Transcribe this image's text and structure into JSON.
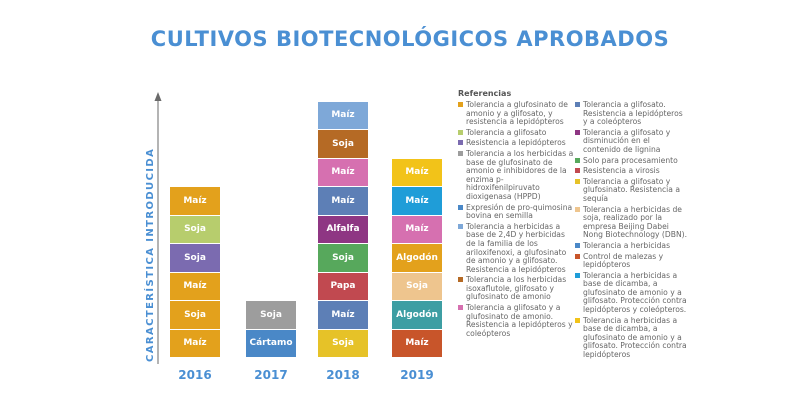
{
  "title": "CULTIVOS BIOTECNOLÓGICOS APROBADOS",
  "chart_data": {
    "type": "bar",
    "ylabel": "CARACTERÍSTICA INTRODUCIDA",
    "categories": [
      "2016",
      "2017",
      "2018",
      "2019"
    ],
    "stacks": [
      {
        "year": "2016",
        "blocks": [
          {
            "label": "Maíz",
            "color": "#e3a11c"
          },
          {
            "label": "Soja",
            "color": "#e3a11c"
          },
          {
            "label": "Maíz",
            "color": "#e3a11c"
          },
          {
            "label": "Soja",
            "color": "#7b6bb0"
          },
          {
            "label": "Soja",
            "color": "#b7cd6d"
          },
          {
            "label": "Maíz",
            "color": "#e3a11c"
          }
        ]
      },
      {
        "year": "2017",
        "blocks": [
          {
            "label": "Cártamo",
            "color": "#4a88c7"
          },
          {
            "label": "Soja",
            "color": "#9d9d9d"
          }
        ]
      },
      {
        "year": "2018",
        "blocks": [
          {
            "label": "Soja",
            "color": "#e6c228"
          },
          {
            "label": "Maíz",
            "color": "#5d7fb6"
          },
          {
            "label": "Papa",
            "color": "#c14950"
          },
          {
            "label": "Soja",
            "color": "#57a85c"
          },
          {
            "label": "Alfalfa",
            "color": "#8e3683"
          },
          {
            "label": "Maíz",
            "color": "#5d7fb6"
          },
          {
            "label": "Maíz",
            "color": "#d670b0"
          },
          {
            "label": "Soja",
            "color": "#b56a25"
          },
          {
            "label": "Maíz",
            "color": "#7ea8d8"
          }
        ]
      },
      {
        "year": "2019",
        "blocks": [
          {
            "label": "Maíz",
            "color": "#c8552a"
          },
          {
            "label": "Algodón",
            "color": "#3d9ea3"
          },
          {
            "label": "Soja",
            "color": "#eec58e"
          },
          {
            "label": "Algodón",
            "color": "#e3a11c"
          },
          {
            "label": "Maíz",
            "color": "#d670b0"
          },
          {
            "label": "Maíz",
            "color": "#1f9dd8"
          },
          {
            "label": "Maíz",
            "color": "#f2c319"
          }
        ]
      }
    ]
  },
  "legend": {
    "title": "Referencias",
    "col1": [
      {
        "text": "Tolerancia a glufosinato de amonio y a glifosato, y resistencia a lepidópteros",
        "color": "#e3a11c"
      },
      {
        "text": "Tolerancia a glifosato",
        "color": "#b7cd6d"
      },
      {
        "text": "Resistencia a lepidópteros",
        "color": "#7b6bb0"
      },
      {
        "text": "Tolerancia a los herbicidas a base de glufosinato de amonio e inhibidores de la enzima p-hidroxifenilpiruvato dioxigenasa (HPPD)",
        "color": "#9d9d9d"
      },
      {
        "text": "Expresión de pro-quimosina bovina en semilla",
        "color": "#4a88c7"
      },
      {
        "text": "Tolerancia a herbicidas a base de 2,4D y herbicidas de la familia de los ariloxifenoxi, a glufosinato de amonio y a glifosato. Resistencia a lepidópteros",
        "color": "#7ea8d8"
      },
      {
        "text": "Tolerancia a los herbicidas isoxaflutole, glifosato y glufosinato de amonio",
        "color": "#b56a25"
      },
      {
        "text": "Tolerancia a glifosato y a glufosinato de amonio. Resistencia a lepidópteros y coleópteros",
        "color": "#d670b0"
      }
    ],
    "col2": [
      {
        "text": "Tolerancia a glifosato. Resistencia a lepidópteros y a coleópteros",
        "color": "#5d7fb6"
      },
      {
        "text": "Tolerancia a glifosato y disminución en el contenido de lignina",
        "color": "#8e3683"
      },
      {
        "text": "Solo para procesamiento",
        "color": "#57a85c"
      },
      {
        "text": "Resistencia a virosis",
        "color": "#c14950"
      },
      {
        "text": "Tolerancia a glifosato y glufosinato. Resistencia a sequía",
        "color": "#e6c228"
      },
      {
        "text": "Tolerancia a herbicidas de soja, realizado por la empresa Beijing Dabei Nong Biotechnology (DBN).",
        "color": "#eec58e"
      },
      {
        "text": "Tolerancia a herbicidas",
        "color": "#4a88c7"
      },
      {
        "text": "Control de malezas y lepidópteros",
        "color": "#c8552a"
      },
      {
        "text": "Tolerancia a herbicidas a base de dicamba, a glufosinato de amonio y a glifosato. Protección contra lepidópteros y coleópteros.",
        "color": "#1f9dd8"
      },
      {
        "text": "Tolerancia a herbicidas a base de dicamba, a glufosinato de amonio y a glifosato. Protección contra lepidópteros",
        "color": "#f2c319"
      }
    ]
  }
}
